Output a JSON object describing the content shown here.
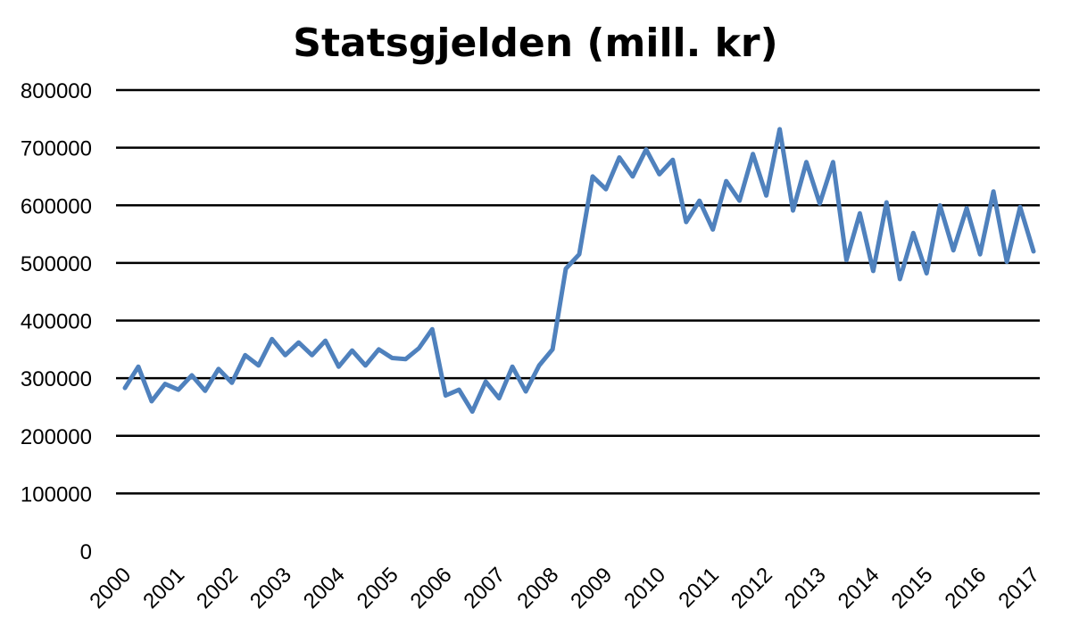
{
  "chart_data": {
    "type": "line",
    "title": "Statsgjelden (mill. kr)",
    "xlabel": "",
    "ylabel": "",
    "ylim": [
      0,
      800000
    ],
    "yticks": [
      0,
      100000,
      200000,
      300000,
      400000,
      500000,
      600000,
      700000,
      800000
    ],
    "ytick_labels": [
      "0",
      "100000",
      "200000",
      "300000",
      "400000",
      "500000",
      "600000",
      "700000",
      "800000"
    ],
    "x_tick_labels": [
      "2000",
      "2001",
      "2002",
      "2003",
      "2004",
      "2005",
      "2006",
      "2007",
      "2008",
      "2009",
      "2010",
      "2011",
      "2012",
      "2013",
      "2014",
      "2015",
      "2016",
      "2017"
    ],
    "grid": true,
    "legend": "none",
    "series_color": "#4f81bd",
    "series": [
      {
        "values": [
          283000,
          320000,
          260000,
          290000,
          280000,
          305000,
          278000,
          316000,
          292000,
          340000,
          322000,
          368000,
          340000,
          362000,
          340000,
          365000,
          320000,
          348000,
          322000,
          350000,
          335000,
          333000,
          352000,
          385000,
          270000,
          280000,
          242000,
          294000,
          265000,
          320000,
          277000,
          322000,
          350000,
          490000,
          515000,
          650000,
          628000,
          683000,
          650000,
          697000,
          654000,
          679000,
          571000,
          608000,
          558000,
          642000,
          608000,
          689000,
          617000,
          732000,
          591000,
          675000,
          603000,
          675000,
          505000,
          586000,
          486000,
          605000,
          472000,
          552000,
          482000,
          600000,
          522000,
          595000,
          515000,
          624000,
          502000,
          597000,
          520000
        ]
      }
    ]
  }
}
